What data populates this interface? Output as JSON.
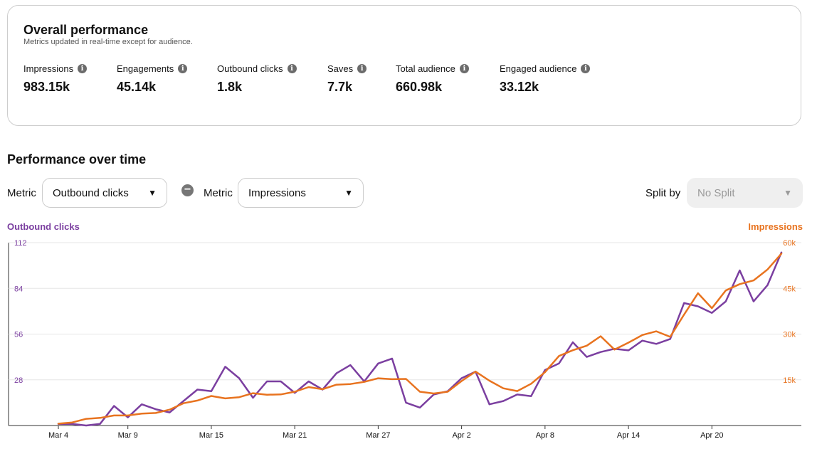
{
  "overall": {
    "title": "Overall performance",
    "subtitle": "Metrics updated in real-time except for audience.",
    "metrics": [
      {
        "label": "Impressions",
        "value": "983.15k"
      },
      {
        "label": "Engagements",
        "value": "45.14k"
      },
      {
        "label": "Outbound clicks",
        "value": "1.8k"
      },
      {
        "label": "Saves",
        "value": "7.7k"
      },
      {
        "label": "Total audience",
        "value": "660.98k"
      },
      {
        "label": "Engaged audience",
        "value": "33.12k"
      }
    ],
    "info_glyph": "i"
  },
  "performance": {
    "title": "Performance over time",
    "metric_label": "Metric",
    "metric1": "Outbound clicks",
    "metric2": "Impressions",
    "remove_glyph": "−",
    "split_label": "Split by",
    "split_value": "No Split",
    "chevron": "⌄"
  },
  "colors": {
    "outbound": "#7b3fa0",
    "impressions": "#e8731f"
  },
  "chart_data": {
    "type": "line",
    "x_ticks": [
      "Mar 4",
      "Mar 9",
      "Mar 15",
      "Mar 21",
      "Mar 27",
      "Apr 2",
      "Apr 8",
      "Apr 14",
      "Apr 20"
    ],
    "left_axis": {
      "title": "Outbound clicks",
      "ticks": [
        "28",
        "56",
        "84",
        "112"
      ],
      "range": [
        0,
        112
      ]
    },
    "right_axis": {
      "title": "Impressions",
      "ticks": [
        "15k",
        "30k",
        "45k",
        "60k"
      ],
      "range": [
        0,
        60000
      ]
    },
    "grid": true,
    "series": [
      {
        "name": "Outbound clicks",
        "axis": "left",
        "values": [
          1,
          1,
          0,
          1,
          12,
          5,
          13,
          10,
          8,
          15,
          22,
          21,
          36,
          29,
          17,
          27,
          27,
          20,
          27,
          22,
          32,
          37,
          27,
          38,
          41,
          14,
          11,
          19,
          21,
          29,
          33,
          13,
          15,
          19,
          18,
          34,
          38,
          51,
          42,
          45,
          47,
          46,
          52,
          50,
          53,
          75,
          73,
          69,
          76,
          95,
          76,
          86,
          106
        ]
      },
      {
        "name": "Impressions",
        "axis": "right",
        "values": [
          600,
          1000,
          2200,
          2500,
          3300,
          3300,
          3900,
          4100,
          5200,
          7300,
          8200,
          9700,
          8900,
          9300,
          10600,
          10100,
          10200,
          11100,
          12600,
          11900,
          13400,
          13600,
          14300,
          15500,
          15200,
          15300,
          11100,
          10500,
          11100,
          14600,
          17700,
          14700,
          12200,
          11300,
          13700,
          17500,
          22800,
          24700,
          26200,
          29300,
          24900,
          27200,
          29700,
          30900,
          29100,
          36400,
          43400,
          38500,
          44300,
          46400,
          47600,
          51200,
          56400
        ]
      }
    ]
  }
}
